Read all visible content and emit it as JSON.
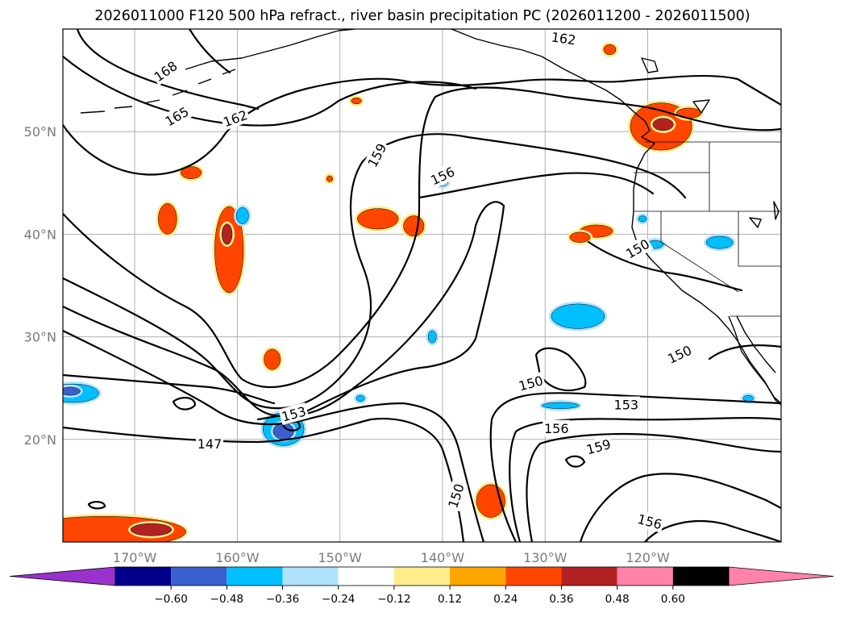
{
  "title": "2026011000 F120 500 hPa refract., river basin precipitation PC (2026011200 - 2026011500)",
  "map": {
    "projection": "cylindrical",
    "lon_range": [
      -177,
      -107
    ],
    "lat_range": [
      10,
      60
    ],
    "grid": true,
    "lon_ticks": [
      {
        "lon": -170,
        "label": "170°W"
      },
      {
        "lon": -160,
        "label": "160°W"
      },
      {
        "lon": -150,
        "label": "150°W"
      },
      {
        "lon": -140,
        "label": "140°W"
      },
      {
        "lon": -130,
        "label": "130°W"
      },
      {
        "lon": -120,
        "label": "120°W"
      }
    ],
    "lat_ticks": [
      {
        "lat": 20,
        "label": "20°N"
      },
      {
        "lat": 30,
        "label": "30°N"
      },
      {
        "lat": 40,
        "label": "40°N"
      },
      {
        "lat": 50,
        "label": "50°N"
      }
    ]
  },
  "contours": {
    "variable": "500 hPa refractivity",
    "labels": [
      {
        "text": "168",
        "lon": -167.0,
        "lat": 55.9,
        "angle": -35
      },
      {
        "text": "165",
        "lon": -165.9,
        "lat": 51.5,
        "angle": -30
      },
      {
        "text": "162",
        "lon": -160.2,
        "lat": 51.3,
        "angle": -20
      },
      {
        "text": "162",
        "lon": -128.2,
        "lat": 59.1,
        "angle": 8
      },
      {
        "text": "159",
        "lon": -146.4,
        "lat": 47.7,
        "angle": -62
      },
      {
        "text": "156",
        "lon": -140.0,
        "lat": 45.7,
        "angle": -25
      },
      {
        "text": "150",
        "lon": -121.0,
        "lat": 38.6,
        "angle": -30
      },
      {
        "text": "150",
        "lon": -116.9,
        "lat": 28.3,
        "angle": -25
      },
      {
        "text": "150",
        "lon": -131.4,
        "lat": 25.5,
        "angle": -15
      },
      {
        "text": "153",
        "lon": -122.1,
        "lat": 23.4,
        "angle": 0
      },
      {
        "text": "153",
        "lon": -154.5,
        "lat": 22.5,
        "angle": -15
      },
      {
        "text": "156",
        "lon": -128.9,
        "lat": 21.1,
        "angle": 0
      },
      {
        "text": "159",
        "lon": -124.8,
        "lat": 19.3,
        "angle": -15
      },
      {
        "text": "147",
        "lon": -162.7,
        "lat": 19.6,
        "angle": 0
      },
      {
        "text": "150",
        "lon": -138.7,
        "lat": 14.5,
        "angle": -72
      },
      {
        "text": "156",
        "lon": -119.8,
        "lat": 12.0,
        "angle": 15
      }
    ]
  },
  "precipitation_pc": {
    "colorbar": {
      "ticks": [
        "−0.60",
        "−0.48",
        "−0.36",
        "−0.24",
        "−0.12",
        "0.12",
        "0.24",
        "0.36",
        "0.48",
        "0.60"
      ],
      "colors": [
        "#9932cc",
        "#00008b",
        "#3a5fcd",
        "#00bfff",
        "#b0e2ff",
        "#ffffff",
        "#ffec8b",
        "#ffa500",
        "#ff4500",
        "#b22222",
        "#ff82ab"
      ],
      "extend": "both"
    },
    "areas": [
      {
        "lon": -173.0,
        "lat": 11.0,
        "rx": 8,
        "ry": 1.5,
        "level": 0.36
      },
      {
        "lon": -168.4,
        "lat": 11.2,
        "rx": 2,
        "ry": 0.6,
        "level": 0.48
      },
      {
        "lon": -160.8,
        "lat": 38.5,
        "rx": 1.4,
        "ry": 4.2,
        "level": 0.36
      },
      {
        "lon": -161.0,
        "lat": 40.0,
        "rx": 0.5,
        "ry": 1.0,
        "level": 0.48
      },
      {
        "lon": -166.8,
        "lat": 41.5,
        "rx": 0.9,
        "ry": 1.5,
        "level": 0.36
      },
      {
        "lon": -164.5,
        "lat": 46.0,
        "rx": 1.0,
        "ry": 0.6,
        "level": 0.36
      },
      {
        "lon": -156.6,
        "lat": 27.8,
        "rx": 0.8,
        "ry": 1.0,
        "level": 0.36
      },
      {
        "lon": -146.3,
        "lat": 41.5,
        "rx": 2.0,
        "ry": 1.0,
        "level": 0.36
      },
      {
        "lon": -142.8,
        "lat": 40.8,
        "rx": 1.0,
        "ry": 1.0,
        "level": 0.36
      },
      {
        "lon": -118.7,
        "lat": 50.5,
        "rx": 3.0,
        "ry": 2.3,
        "level": 0.36
      },
      {
        "lon": -118.5,
        "lat": 50.7,
        "rx": 1.0,
        "ry": 0.6,
        "level": 0.48
      },
      {
        "lon": -116.0,
        "lat": 51.8,
        "rx": 1.2,
        "ry": 0.5,
        "level": 0.36
      },
      {
        "lon": -125.0,
        "lat": 40.3,
        "rx": 1.6,
        "ry": 0.6,
        "level": 0.36
      },
      {
        "lon": -126.6,
        "lat": 39.7,
        "rx": 1.0,
        "ry": 0.5,
        "level": 0.36
      },
      {
        "lon": -135.3,
        "lat": 14.0,
        "rx": 1.4,
        "ry": 1.6,
        "level": 0.36
      },
      {
        "lon": -148.4,
        "lat": 53.0,
        "rx": 0.5,
        "ry": 0.3,
        "level": 0.36
      },
      {
        "lon": -123.7,
        "lat": 58.0,
        "rx": 0.6,
        "ry": 0.5,
        "level": 0.36
      },
      {
        "lon": -151.0,
        "lat": 45.4,
        "rx": 0.3,
        "ry": 0.3,
        "level": 0.36
      },
      {
        "lon": -159.5,
        "lat": 41.8,
        "rx": 0.6,
        "ry": 0.8,
        "level": -0.36
      },
      {
        "lon": -126.8,
        "lat": 32.0,
        "rx": 2.6,
        "ry": 1.2,
        "level": -0.36
      },
      {
        "lon": -176.0,
        "lat": 24.5,
        "rx": 2.5,
        "ry": 0.9,
        "level": -0.36
      },
      {
        "lon": -176.3,
        "lat": 24.7,
        "rx": 1.0,
        "ry": 0.4,
        "level": -0.48
      },
      {
        "lon": -155.5,
        "lat": 21.0,
        "rx": 2.0,
        "ry": 1.6,
        "level": -0.36
      },
      {
        "lon": -155.5,
        "lat": 20.8,
        "rx": 1.0,
        "ry": 0.8,
        "level": -0.48
      },
      {
        "lon": -113.0,
        "lat": 39.2,
        "rx": 1.3,
        "ry": 0.6,
        "level": -0.36
      },
      {
        "lon": -128.5,
        "lat": 23.3,
        "rx": 1.8,
        "ry": 0.3,
        "level": -0.36
      },
      {
        "lon": -141.0,
        "lat": 30.0,
        "rx": 0.4,
        "ry": 0.6,
        "level": -0.36
      },
      {
        "lon": -119.3,
        "lat": 39.0,
        "rx": 0.8,
        "ry": 0.4,
        "level": -0.36
      },
      {
        "lon": -120.5,
        "lat": 41.5,
        "rx": 0.4,
        "ry": 0.3,
        "level": -0.36
      },
      {
        "lon": -110.2,
        "lat": 24.0,
        "rx": 0.5,
        "ry": 0.3,
        "level": -0.36
      },
      {
        "lon": -148.0,
        "lat": 24.0,
        "rx": 0.4,
        "ry": 0.3,
        "level": -0.36
      },
      {
        "lon": -140.0,
        "lat": 45.0,
        "rx": 0.5,
        "ry": 0.3,
        "level": -0.24
      }
    ]
  }
}
